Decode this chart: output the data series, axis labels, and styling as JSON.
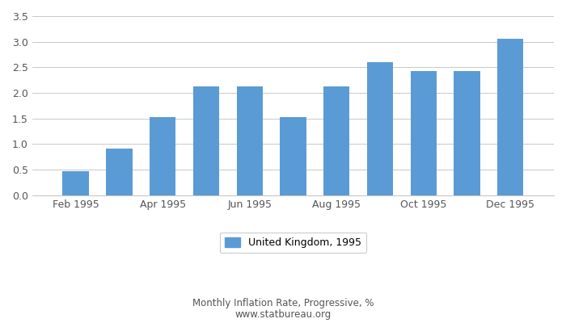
{
  "values": [
    0.47,
    0.91,
    1.53,
    2.13,
    2.13,
    1.53,
    2.13,
    2.6,
    2.43,
    2.43,
    3.06
  ],
  "bar_indices": [
    1,
    2,
    3,
    4,
    5,
    6,
    7,
    8,
    9,
    10,
    11
  ],
  "bar_color": "#5b9bd5",
  "ylim": [
    0,
    3.5
  ],
  "yticks": [
    0,
    0.5,
    1.0,
    1.5,
    2.0,
    2.5,
    3.0,
    3.5
  ],
  "xtick_labels": [
    "Feb 1995",
    "Apr 1995",
    "Jun 1995",
    "Aug 1995",
    "Oct 1995",
    "Dec 1995"
  ],
  "xtick_positions": [
    1,
    3,
    5,
    7,
    9,
    11
  ],
  "xlim": [
    0,
    12
  ],
  "bar_width": 0.6,
  "legend_label": "United Kingdom, 1995",
  "footnote_line1": "Monthly Inflation Rate, Progressive, %",
  "footnote_line2": "www.statbureau.org",
  "background_color": "#ffffff",
  "grid_color": "#c8c8c8",
  "tick_color": "#555555",
  "footnote_color": "#555555",
  "legend_fontsize": 9,
  "tick_fontsize": 9,
  "footnote_fontsize": 8.5
}
